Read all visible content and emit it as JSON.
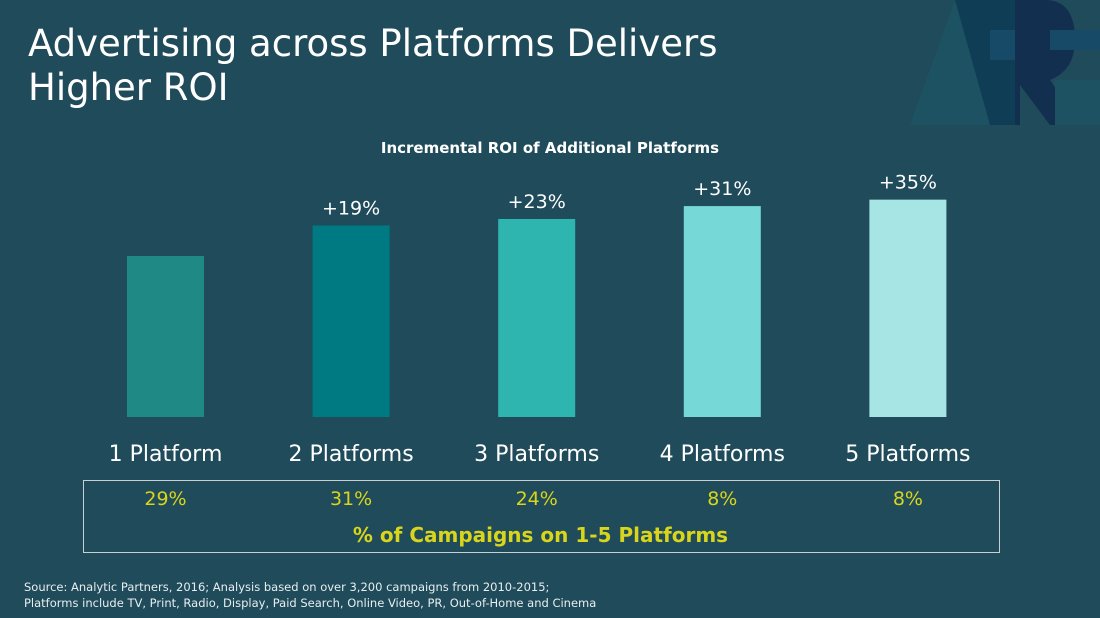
{
  "slide": {
    "title": "Advertising across Platforms Delivers Higher ROI",
    "source_lines": [
      "Source: Analytic Partners, 2016; Analysis based on over 3,200 campaigns from 2010-2015;",
      "Platforms include TV, Print, Radio, Display, Paid Search, Online Video, PR, Out-of-Home and Cinema"
    ],
    "logo_text": "AR"
  },
  "chart_data": {
    "type": "bar",
    "title": "Incremental ROI of Additional Platforms",
    "categories": [
      "1 Platform",
      "2 Platforms",
      "3 Platforms",
      "4 Platforms",
      "5 Platforms"
    ],
    "values": [
      1.0,
      1.19,
      1.23,
      1.31,
      1.35
    ],
    "data_labels": [
      "",
      "+19%",
      "+23%",
      "+31%",
      "+35%"
    ],
    "colors": [
      "#1f8a85",
      "#007a82",
      "#2fb5b0",
      "#76d9d8",
      "#a6e5e4"
    ],
    "grid": false,
    "value_axis_shown": false,
    "campaign_share": {
      "label": "% of Campaigns on 1-5 Platforms",
      "values": [
        "29%",
        "31%",
        "24%",
        "8%",
        "8%"
      ],
      "color": "#d9d51c"
    }
  }
}
